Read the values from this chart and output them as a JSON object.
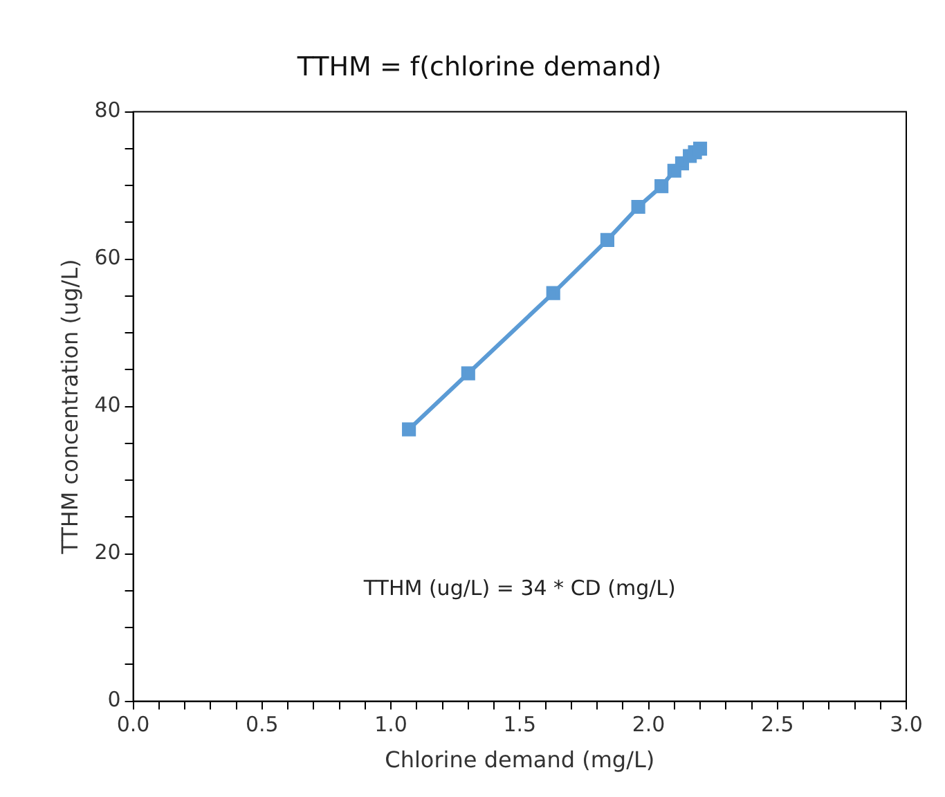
{
  "chart_data": {
    "type": "line",
    "title": "TTHM = f(chlorine demand)",
    "xlabel": "Chlorine demand (mg/L)",
    "ylabel": "TTHM concentration (ug/L)",
    "annotations": [
      "TTHM (ug/L) = 34 * CD (mg/L)"
    ],
    "x": [
      1.07,
      1.3,
      1.63,
      1.84,
      1.96,
      2.05,
      2.1,
      2.13,
      2.16,
      2.18,
      2.2
    ],
    "series": [
      {
        "color": "#5b9bd5",
        "values": [
          36.9,
          44.5,
          55.4,
          62.6,
          67.1,
          69.9,
          72,
          73,
          74,
          74.5,
          75
        ]
      }
    ],
    "marker": "square",
    "grid": false,
    "legend": false,
    "xlim": [
      0,
      3
    ],
    "xticks": [
      {
        "value": 0,
        "label": "0.0"
      },
      {
        "value": 0.1,
        "label": null
      },
      {
        "value": 0.2,
        "label": null
      },
      {
        "value": 0.3,
        "label": null
      },
      {
        "value": 0.4,
        "label": null
      },
      {
        "value": 0.5,
        "label": "0.5"
      },
      {
        "value": 0.6,
        "label": null
      },
      {
        "value": 0.7,
        "label": null
      },
      {
        "value": 0.8,
        "label": null
      },
      {
        "value": 0.9,
        "label": null
      },
      {
        "value": 1,
        "label": "1.0"
      },
      {
        "value": 1.1,
        "label": null
      },
      {
        "value": 1.2,
        "label": null
      },
      {
        "value": 1.3,
        "label": null
      },
      {
        "value": 1.4,
        "label": null
      },
      {
        "value": 1.5,
        "label": "1.5"
      },
      {
        "value": 1.6,
        "label": null
      },
      {
        "value": 1.7,
        "label": null
      },
      {
        "value": 1.8,
        "label": null
      },
      {
        "value": 1.9,
        "label": null
      },
      {
        "value": 2,
        "label": "2.0"
      },
      {
        "value": 2.1,
        "label": null
      },
      {
        "value": 2.2,
        "label": null
      },
      {
        "value": 2.3,
        "label": null
      },
      {
        "value": 2.4,
        "label": null
      },
      {
        "value": 2.5,
        "label": "2.5"
      },
      {
        "value": 2.6,
        "label": null
      },
      {
        "value": 2.7,
        "label": null
      },
      {
        "value": 2.8,
        "label": null
      },
      {
        "value": 2.9,
        "label": null
      },
      {
        "value": 3,
        "label": "3.0"
      }
    ],
    "ylim": [
      0,
      80
    ],
    "yticks": [
      0,
      {
        "value": 5,
        "label": null
      },
      {
        "value": 10,
        "label": null
      },
      {
        "value": 15,
        "label": null
      },
      20,
      {
        "value": 25,
        "label": null
      },
      {
        "value": 30,
        "label": null
      },
      {
        "value": 35,
        "label": null
      },
      40,
      {
        "value": 45,
        "label": null
      },
      {
        "value": 50,
        "label": null
      },
      {
        "value": 55,
        "label": null
      },
      60,
      {
        "value": 65,
        "label": null
      },
      {
        "value": 70,
        "label": null
      },
      {
        "value": 75,
        "label": null
      },
      80
    ]
  }
}
